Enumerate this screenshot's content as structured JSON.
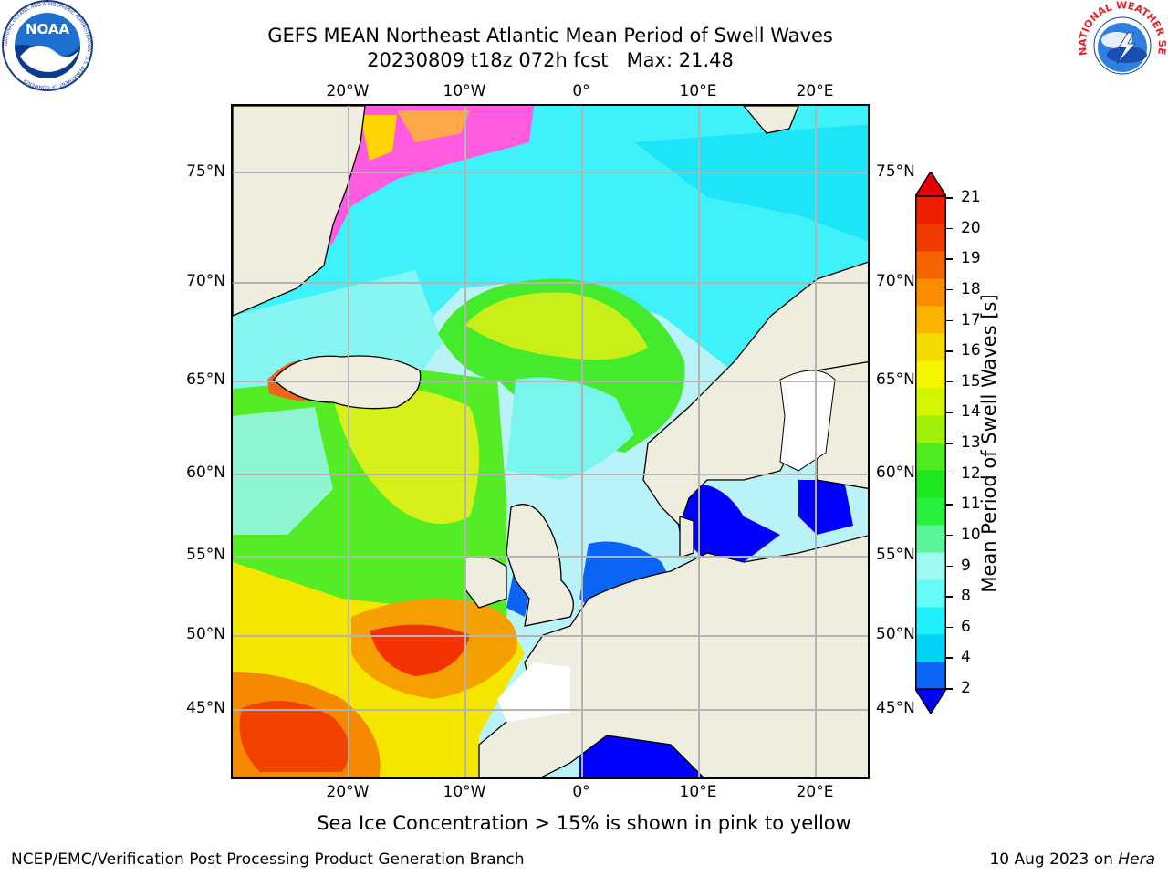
{
  "title_line1": "GEFS MEAN Northeast Atlantic Mean Period of Swell Waves",
  "title_line2": "20230809 t18z 072h fcst   Max: 21.48",
  "lon_ticks": [
    "20°W",
    "10°W",
    "0°",
    "10°E",
    "20°E"
  ],
  "lat_ticks": [
    "75°N",
    "70°N",
    "65°N",
    "60°N",
    "55°N",
    "50°N",
    "45°N"
  ],
  "colorbar": {
    "label": "Mean Period of Swell Waves [s]",
    "ticks": [
      "21",
      "20",
      "19",
      "18",
      "17",
      "16",
      "15",
      "14",
      "13",
      "12",
      "11",
      "10",
      "9",
      "8",
      "6",
      "4",
      "2"
    ],
    "colors": [
      "#0000ff",
      "#0a64f5",
      "#00d2f5",
      "#1ef0fa",
      "#64faf5",
      "#9efaf0",
      "#5af596",
      "#28f03c",
      "#1ee61e",
      "#50eb1e",
      "#a0f00a",
      "#d2f500",
      "#f5f500",
      "#f5dc00",
      "#fab400",
      "#fa8c00",
      "#f56400",
      "#f03c00",
      "#f01e00",
      "#e60000"
    ]
  },
  "footer_caption": "Sea Ice Concentration > 15% is shown in pink to yellow",
  "credit_left": "NCEP/EMC/Verification Post Processing Product Generation Branch",
  "credit_right_prefix": "10 Aug 2023 on ",
  "credit_right_host": "Hera",
  "noaa_logo_text": "NOAA",
  "noaa_ring_text": "NATIONAL OCEANIC AND ATMOSPHERIC ADMINISTRATION · U.S. DEPARTMENT OF COMMERCE",
  "nws_ring_text": "NATIONAL WEATHER SERVICE",
  "colors": {
    "land": "#efedde",
    "ocean_base": "#b9f2f7",
    "grid": "#b4b4b4"
  }
}
